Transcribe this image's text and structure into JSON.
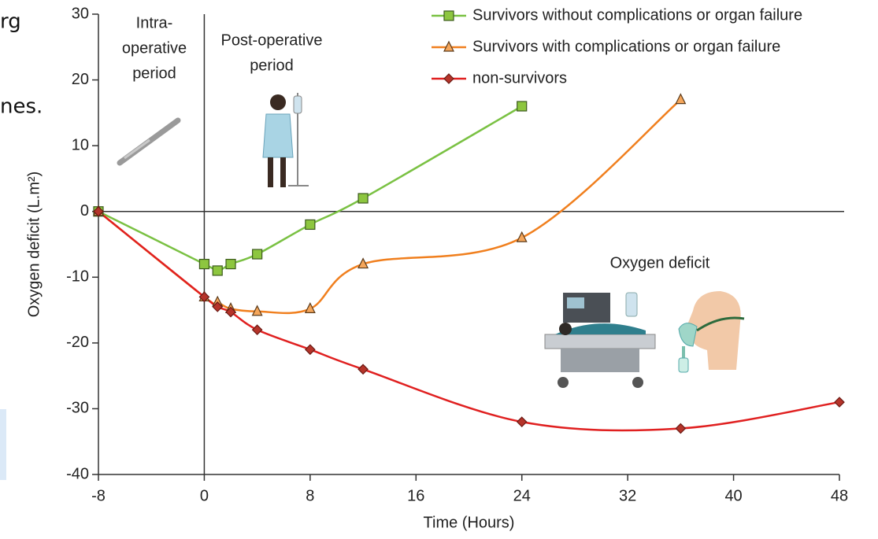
{
  "chart_data": {
    "type": "line",
    "xlabel": "Time (Hours)",
    "ylabel": "Oxygen deficit (L.m²)",
    "xlim": [
      -8,
      48
    ],
    "ylim": [
      -40,
      30
    ],
    "xticks": [
      -8,
      0,
      8,
      16,
      24,
      32,
      40,
      48
    ],
    "yticks": [
      -40,
      -30,
      -20,
      -10,
      0,
      10,
      20,
      30
    ],
    "hlines": [
      0
    ],
    "vlines": [
      0
    ],
    "smooth": true,
    "legend": "upper right",
    "series": [
      {
        "name": "Survivors without complications or organ failure",
        "color": "#7ac143",
        "marker_fill": "#8dc63f",
        "marker": "square",
        "x": [
          -8,
          0,
          1,
          2,
          4,
          8,
          12,
          24
        ],
        "values": [
          0,
          -8,
          -9,
          -8,
          -6.5,
          -2,
          2,
          16
        ]
      },
      {
        "name": "Survivors with complications or organ failure",
        "color": "#f07f1e",
        "marker_fill": "#f5a65b",
        "marker": "triangle",
        "x": [
          -8,
          0,
          1,
          2,
          4,
          8,
          12,
          24,
          36
        ],
        "values": [
          0,
          -13,
          -13.8,
          -14.8,
          -15.2,
          -14.8,
          -8,
          -4,
          17
        ]
      },
      {
        "name": "non-survivors",
        "color": "#e02020",
        "marker_fill": "#b5342a",
        "marker": "diamond",
        "x": [
          -8,
          0,
          1,
          2,
          4,
          8,
          12,
          24,
          36,
          48
        ],
        "values": [
          0,
          -13,
          -14.5,
          -15.3,
          -18,
          -21,
          -24,
          -32,
          -33,
          -29
        ]
      }
    ],
    "annotations": [
      {
        "lines": [
          "Intra-",
          "operative",
          "period"
        ]
      },
      {
        "lines": [
          "Post-operative",
          "period"
        ]
      },
      {
        "lines": [
          "Oxygen deficit"
        ]
      }
    ],
    "background_text": [
      "rg",
      "nes."
    ]
  }
}
